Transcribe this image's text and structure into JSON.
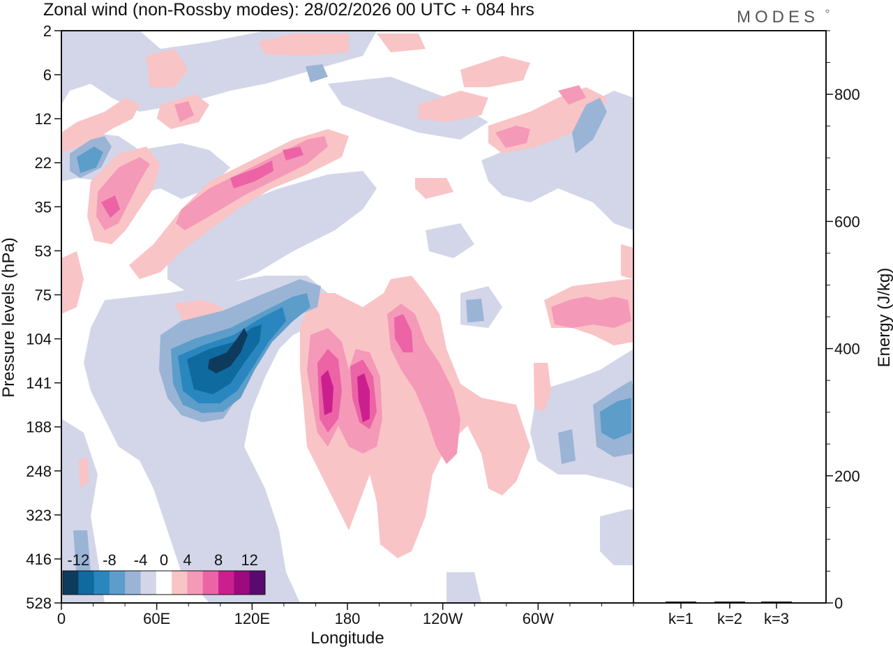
{
  "header": {
    "title": "Zonal wind (non-Rossby modes):  28/02/2026  00 UTC  + 084 hrs",
    "brand": "MODES"
  },
  "chart_data": [
    {
      "type": "heatmap",
      "title": "Zonal wind (non-Rossby modes):  28/02/2026  00 UTC  + 084 hrs",
      "xlabel": "Longitude",
      "ylabel": "Pressure levels (hPa)",
      "x_ticks": [
        "0",
        "60E",
        "120E",
        "180",
        "120W",
        "60W"
      ],
      "x_tick_degrees": [
        0,
        60,
        120,
        180,
        240,
        300
      ],
      "x_range_degrees": [
        0,
        360
      ],
      "y_ticks": [
        "2",
        "6",
        "12",
        "22",
        "35",
        "53",
        "75",
        "104",
        "141",
        "188",
        "248",
        "323",
        "416",
        "528"
      ],
      "colorbar": {
        "labels": [
          "-12",
          "-8",
          "-4",
          "0",
          "4",
          "8",
          "12"
        ],
        "levels": [
          -14,
          -12,
          -10,
          -8,
          -6,
          -4,
          -2,
          2,
          4,
          6,
          8,
          10,
          12,
          14
        ],
        "colors": [
          "#0e3a5c",
          "#0f6aa0",
          "#2a86be",
          "#5c9dca",
          "#9ab4d6",
          "#d2d6e8",
          "#ffffff",
          "#f9c4c6",
          "#f599b8",
          "#ec63a6",
          "#cc1f8e",
          "#9c0a7e",
          "#5a0a6e"
        ]
      },
      "features": [
        {
          "name": "strong easterly core",
          "lon": 100,
          "level": "125",
          "value": -13
        },
        {
          "name": "westerly core A",
          "lon": 165,
          "level": "150",
          "value": 10
        },
        {
          "name": "westerly core B",
          "lon": 188,
          "level": "165",
          "value": 10
        },
        {
          "name": "tilted westerly band",
          "lon": 110,
          "level": "28",
          "value": 7
        },
        {
          "name": "easterly band upper",
          "lon": 20,
          "level": "22",
          "value": -7
        },
        {
          "name": "easterly patch east",
          "lon": 345,
          "level": "188",
          "value": -6
        }
      ]
    },
    {
      "type": "bar",
      "categories": [
        "k=1",
        "k=2",
        "k=3"
      ],
      "values": [
        2,
        1,
        1
      ],
      "ylabel": "Energy (J/kg)",
      "y_ticks": [
        "0",
        "200",
        "400",
        "600",
        "800"
      ],
      "ylim": [
        0,
        900
      ]
    }
  ]
}
